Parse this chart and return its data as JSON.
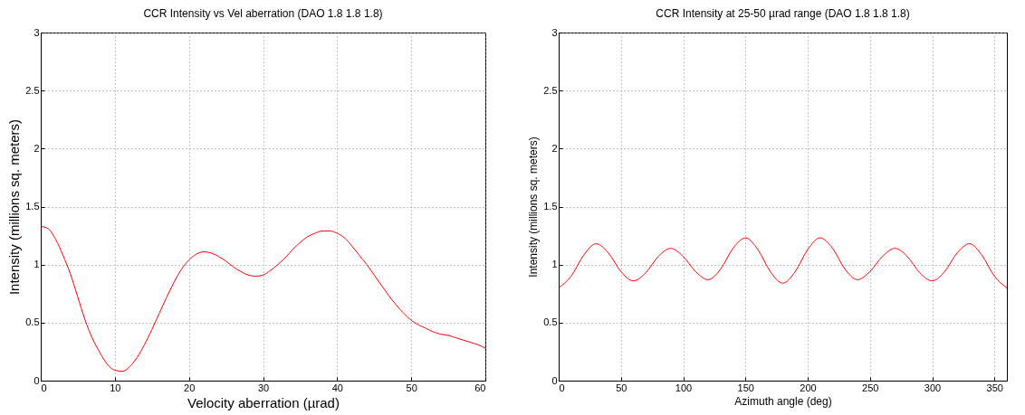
{
  "chart_data": [
    {
      "type": "line",
      "title": "CCR Intensity vs Vel aberration (DAO 1.8 1.8 1.8)",
      "xlabel": "Velocity aberration (µrad)",
      "ylabel": "Intensity (millions sq. meters)",
      "x": [
        0,
        1,
        2,
        3,
        4,
        5,
        6,
        7,
        8,
        9,
        10,
        11,
        12,
        13,
        14,
        15,
        16,
        17,
        18,
        19,
        20,
        21,
        22,
        23,
        24,
        25,
        26,
        27,
        28,
        29,
        30,
        31,
        32,
        33,
        34,
        35,
        36,
        37,
        38,
        39,
        40,
        41,
        42,
        43,
        44,
        45,
        46,
        47,
        48,
        49,
        50,
        51,
        52,
        53,
        54,
        55,
        56,
        57,
        58,
        59,
        60
      ],
      "series": [
        {
          "color": "#ff0000",
          "values": [
            1.33,
            1.31,
            1.22,
            1.08,
            0.92,
            0.72,
            0.52,
            0.36,
            0.24,
            0.14,
            0.09,
            0.08,
            0.12,
            0.2,
            0.31,
            0.44,
            0.58,
            0.72,
            0.85,
            0.96,
            1.04,
            1.09,
            1.11,
            1.1,
            1.07,
            1.03,
            0.98,
            0.94,
            0.91,
            0.9,
            0.91,
            0.95,
            1.0,
            1.06,
            1.13,
            1.19,
            1.24,
            1.27,
            1.29,
            1.29,
            1.27,
            1.23,
            1.16,
            1.08,
            1.0,
            0.91,
            0.82,
            0.73,
            0.65,
            0.58,
            0.52,
            0.48,
            0.45,
            0.42,
            0.4,
            0.39,
            0.37,
            0.35,
            0.33,
            0.31,
            0.28
          ]
        }
      ],
      "xlim": [
        0,
        60
      ],
      "xticks": [
        0,
        10,
        20,
        30,
        40,
        50,
        60
      ],
      "ylim": [
        0,
        3
      ],
      "yticks": [
        0,
        0.5,
        1,
        1.5,
        2,
        2.5,
        3
      ],
      "grid": true,
      "line_style": "solid"
    },
    {
      "type": "line",
      "title": "CCR Intensity at 25-50 µrad range (DAO 1.8 1.8 1.8)",
      "xlabel": "Azimuth angle (deg)",
      "ylabel": "Intensity (millions sq. meters)",
      "x": [
        0,
        10,
        20,
        30,
        40,
        50,
        60,
        70,
        80,
        90,
        100,
        110,
        120,
        130,
        140,
        150,
        160,
        170,
        180,
        190,
        200,
        210,
        220,
        230,
        240,
        250,
        260,
        270,
        280,
        290,
        300,
        310,
        320,
        330,
        340,
        350,
        360
      ],
      "series": [
        {
          "color": "#ff0000",
          "values": [
            0.8,
            0.9,
            1.08,
            1.18,
            1.1,
            0.94,
            0.86,
            0.93,
            1.07,
            1.14,
            1.07,
            0.94,
            0.87,
            0.96,
            1.14,
            1.23,
            1.13,
            0.94,
            0.84,
            0.94,
            1.13,
            1.23,
            1.14,
            0.96,
            0.87,
            0.94,
            1.07,
            1.14,
            1.07,
            0.93,
            0.86,
            0.94,
            1.1,
            1.18,
            1.08,
            0.9,
            0.8
          ]
        }
      ],
      "xlim": [
        0,
        360
      ],
      "xticks": [
        0,
        50,
        100,
        150,
        200,
        250,
        300,
        350
      ],
      "ylim": [
        0,
        3
      ],
      "yticks": [
        0,
        0.5,
        1,
        1.5,
        2,
        2.5,
        3
      ],
      "grid": true,
      "line_style": "solid"
    }
  ]
}
